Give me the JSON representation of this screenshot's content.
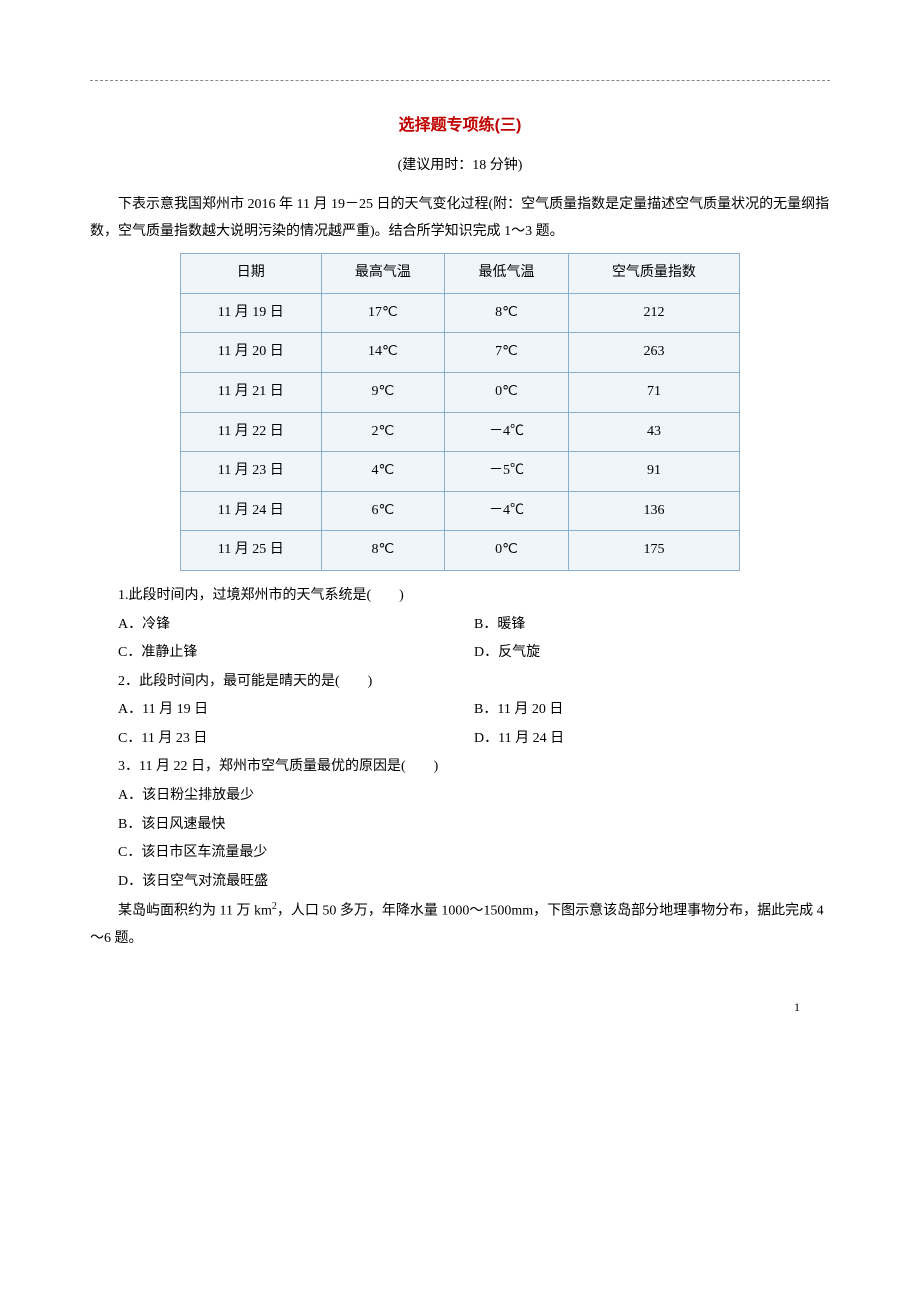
{
  "title": "选择题专项练(三)",
  "subtitle": "(建议用时：18 分钟)",
  "intro": "下表示意我国郑州市 2016 年 11 月 19－25 日的天气变化过程(附：空气质量指数是定量描述空气质量状况的无量纲指数，空气质量指数越大说明污染的情况越严重)。结合所学知识完成 1～3 题。",
  "table": {
    "columns": [
      "日期",
      "最高气温",
      "最低气温",
      "空气质量指数"
    ],
    "rows": [
      [
        "11 月 19 日",
        "17℃",
        "8℃",
        "212"
      ],
      [
        "11 月 20 日",
        "14℃",
        "7℃",
        "263"
      ],
      [
        "11 月 21 日",
        "9℃",
        "0℃",
        "71"
      ],
      [
        "11 月 22 日",
        "2℃",
        "－4℃",
        "43"
      ],
      [
        "11 月 23 日",
        "4℃",
        "－5℃",
        "91"
      ],
      [
        "11 月 24 日",
        "6℃",
        "－4℃",
        "136"
      ],
      [
        "11 月 25 日",
        "8℃",
        "0℃",
        "175"
      ]
    ],
    "border_color": "#8ab0d0",
    "bg_color": "#f0f5fa",
    "col_widths": [
      "25%",
      "25%",
      "25%",
      "25%"
    ]
  },
  "q1": {
    "stem": "1.此段时间内，过境郑州市的天气系统是(　　)",
    "options": {
      "A": "A．冷锋",
      "B": "B．暖锋",
      "C": "C．准静止锋",
      "D": "D．反气旋"
    }
  },
  "q2": {
    "stem": "2．此段时间内，最可能是晴天的是(　　)",
    "options": {
      "A": "A．11 月 19 日",
      "B": "B．11 月 20 日",
      "C": "C．11 月 23 日",
      "D": "D．11 月 24 日"
    }
  },
  "q3": {
    "stem": "3．11 月 22 日，郑州市空气质量最优的原因是(　　)",
    "options": {
      "A": "A．该日粉尘排放最少",
      "B": "B．该日风速最快",
      "C": "C．该日市区车流量最少",
      "D": "D．该日空气对流最旺盛"
    }
  },
  "intro2_pre": "某岛屿面积约为 11 万 km",
  "intro2_sup": "2",
  "intro2_post": "，人口 50 多万，年降水量 1000～1500mm，下图示意该岛部分地理事物分布，据此完成 4～6 题。",
  "page_number": "1",
  "colors": {
    "title_color": "#c00000",
    "text_color": "#000000",
    "background": "#ffffff",
    "dashed_line": "#888888"
  },
  "typography": {
    "body_font_size": 14,
    "title_font_size": 16,
    "page_num_font_size": 12
  }
}
